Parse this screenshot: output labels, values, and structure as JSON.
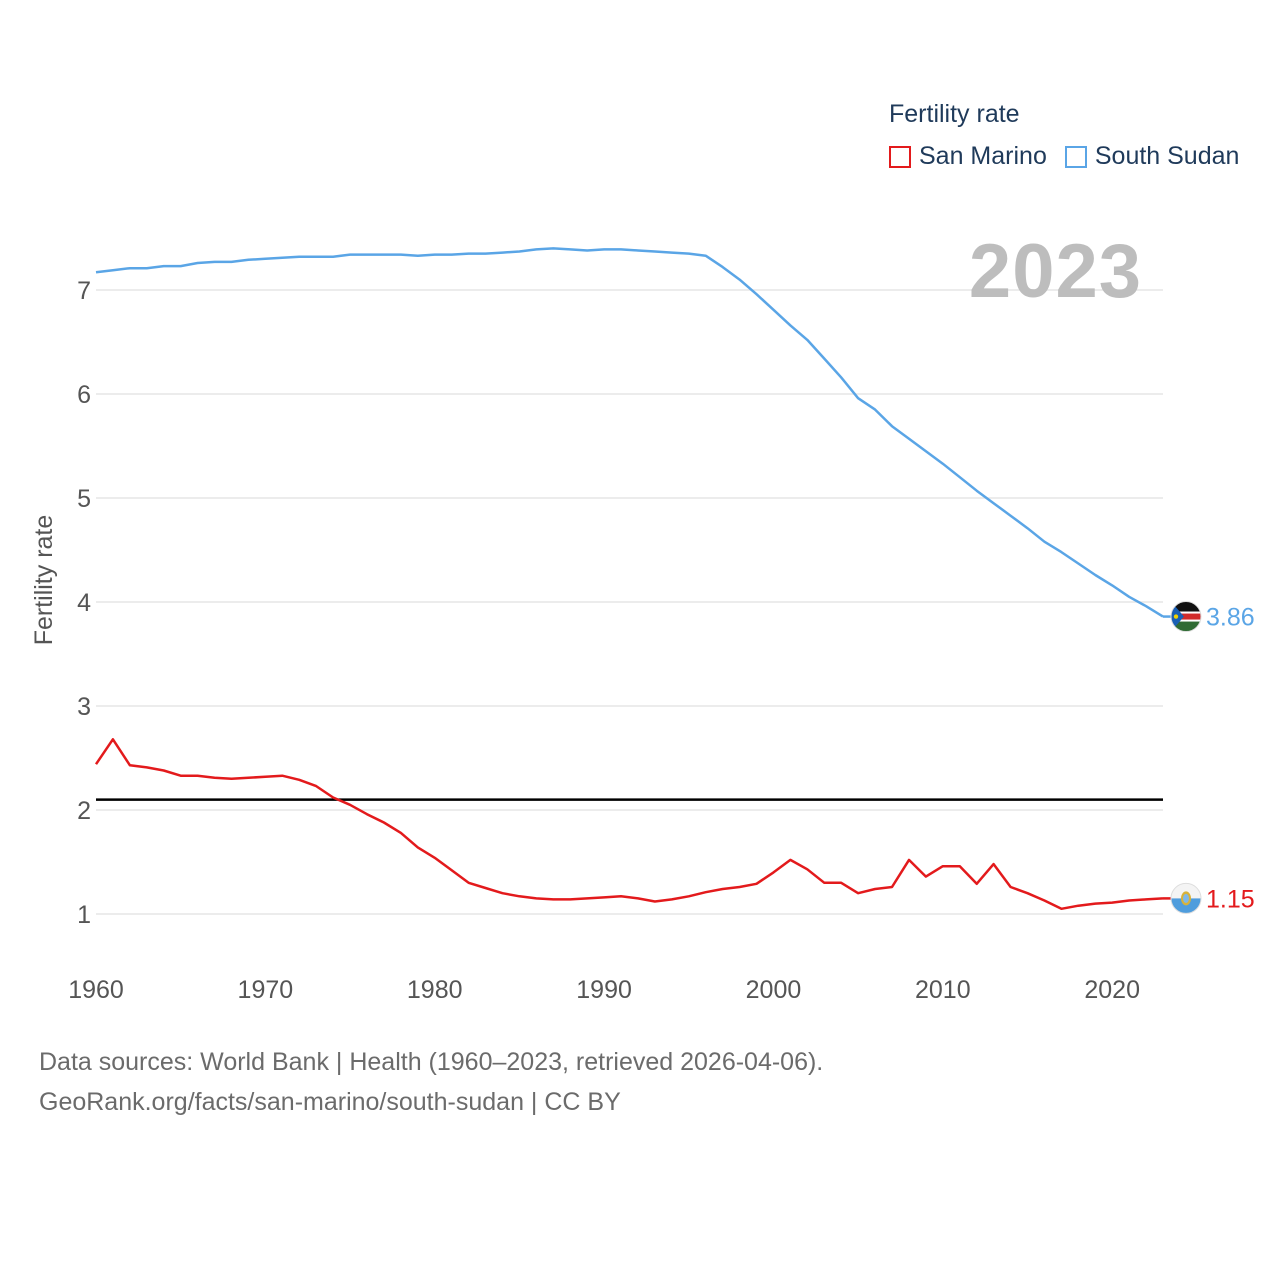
{
  "legend": {
    "title": "Fertility rate",
    "items": [
      {
        "label": "San Marino",
        "color": "#e31a1c"
      },
      {
        "label": "South Sudan",
        "color": "#5aa5e6"
      }
    ]
  },
  "year_label": "2023",
  "footer": {
    "line1": "Data sources: World Bank | Health (1960–2023, retrieved 2026-04-06).",
    "line2": "GeoRank.org/facts/san-marino/south-sudan | CC BY"
  },
  "chart_data": {
    "type": "line",
    "title": "Fertility rate",
    "xlabel": "",
    "ylabel": "Fertility rate",
    "xlim": [
      1960,
      2023
    ],
    "ylim": [
      0.5,
      7.45
    ],
    "x_ticks": [
      1960,
      1970,
      1980,
      1990,
      2000,
      2010,
      2020
    ],
    "y_ticks": [
      1,
      2,
      3,
      4,
      5,
      6,
      7
    ],
    "grid": true,
    "reference_line": {
      "y": 2.1,
      "color": "#000000"
    },
    "x": [
      1960,
      1961,
      1962,
      1963,
      1964,
      1965,
      1966,
      1967,
      1968,
      1969,
      1970,
      1971,
      1972,
      1973,
      1974,
      1975,
      1976,
      1977,
      1978,
      1979,
      1980,
      1981,
      1982,
      1983,
      1984,
      1985,
      1986,
      1987,
      1988,
      1989,
      1990,
      1991,
      1992,
      1993,
      1994,
      1995,
      1996,
      1997,
      1998,
      1999,
      2000,
      2001,
      2002,
      2003,
      2004,
      2005,
      2006,
      2007,
      2008,
      2009,
      2010,
      2011,
      2012,
      2013,
      2014,
      2015,
      2016,
      2017,
      2018,
      2019,
      2020,
      2021,
      2022,
      2023
    ],
    "series": [
      {
        "name": "San Marino",
        "color": "#e31a1c",
        "end_label": "1.15",
        "values": [
          2.44,
          2.68,
          2.43,
          2.41,
          2.38,
          2.33,
          2.33,
          2.31,
          2.3,
          2.31,
          2.32,
          2.33,
          2.29,
          2.23,
          2.12,
          2.05,
          1.96,
          1.88,
          1.78,
          1.64,
          1.54,
          1.42,
          1.3,
          1.25,
          1.2,
          1.17,
          1.15,
          1.14,
          1.14,
          1.15,
          1.16,
          1.17,
          1.15,
          1.12,
          1.14,
          1.17,
          1.21,
          1.24,
          1.26,
          1.29,
          1.4,
          1.52,
          1.43,
          1.3,
          1.3,
          1.2,
          1.24,
          1.26,
          1.52,
          1.36,
          1.46,
          1.46,
          1.29,
          1.48,
          1.26,
          1.2,
          1.13,
          1.05,
          1.08,
          1.1,
          1.11,
          1.13,
          1.14,
          1.15
        ]
      },
      {
        "name": "South Sudan",
        "color": "#5aa5e6",
        "end_label": "3.86",
        "values": [
          7.17,
          7.19,
          7.21,
          7.21,
          7.23,
          7.23,
          7.26,
          7.27,
          7.27,
          7.29,
          7.3,
          7.31,
          7.32,
          7.32,
          7.32,
          7.34,
          7.34,
          7.34,
          7.34,
          7.33,
          7.34,
          7.34,
          7.35,
          7.35,
          7.36,
          7.37,
          7.39,
          7.4,
          7.39,
          7.38,
          7.39,
          7.39,
          7.38,
          7.37,
          7.36,
          7.35,
          7.33,
          7.22,
          7.1,
          6.96,
          6.81,
          6.66,
          6.52,
          6.34,
          6.16,
          5.96,
          5.85,
          5.69,
          5.57,
          5.45,
          5.33,
          5.2,
          5.07,
          4.95,
          4.83,
          4.71,
          4.58,
          4.48,
          4.37,
          4.26,
          4.16,
          4.05,
          3.96,
          3.86
        ]
      }
    ]
  }
}
